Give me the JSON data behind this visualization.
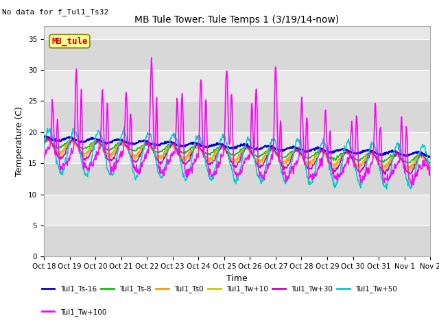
{
  "title": "MB Tule Tower: Tule Temps 1 (3/19/14-now)",
  "no_data_text": "No data for f_Tul1_Ts32",
  "ylabel": "Temperature (C)",
  "xlabel": "Time",
  "ylim": [
    0,
    37
  ],
  "yticks": [
    0,
    5,
    10,
    15,
    20,
    25,
    30,
    35
  ],
  "plot_bg_color": "#e8e8e8",
  "band_color_light": "#e0e0e0",
  "band_color_dark": "#d0d0d0",
  "legend_box_label": "MB_tule",
  "legend_box_color": "#ffff99",
  "legend_box_border": "#cc0000",
  "x_tick_labels": [
    "Oct 18",
    "Oct 19",
    "Oct 20",
    "Oct 21",
    "Oct 22",
    "Oct 23",
    "Oct 24",
    "Oct 25",
    "Oct 26",
    "Oct 27",
    "Oct 28",
    "Oct 29",
    "Oct 30",
    "Oct 31",
    "Nov 1",
    "Nov 2"
  ],
  "series": [
    {
      "label": "Tul1_Ts-16",
      "color": "#0000cc",
      "lw": 1.8
    },
    {
      "label": "Tul1_Ts-8",
      "color": "#00cc00",
      "lw": 1.2
    },
    {
      "label": "Tul1_Ts0",
      "color": "#ff9900",
      "lw": 1.2
    },
    {
      "label": "Tul1_Tw+10",
      "color": "#cccc00",
      "lw": 1.2
    },
    {
      "label": "Tul1_Tw+30",
      "color": "#cc00cc",
      "lw": 1.2
    },
    {
      "label": "Tul1_Tw+50",
      "color": "#00cccc",
      "lw": 1.2
    },
    {
      "label": "Tul1_Tw+100",
      "color": "#ff00ff",
      "lw": 1.2
    }
  ]
}
